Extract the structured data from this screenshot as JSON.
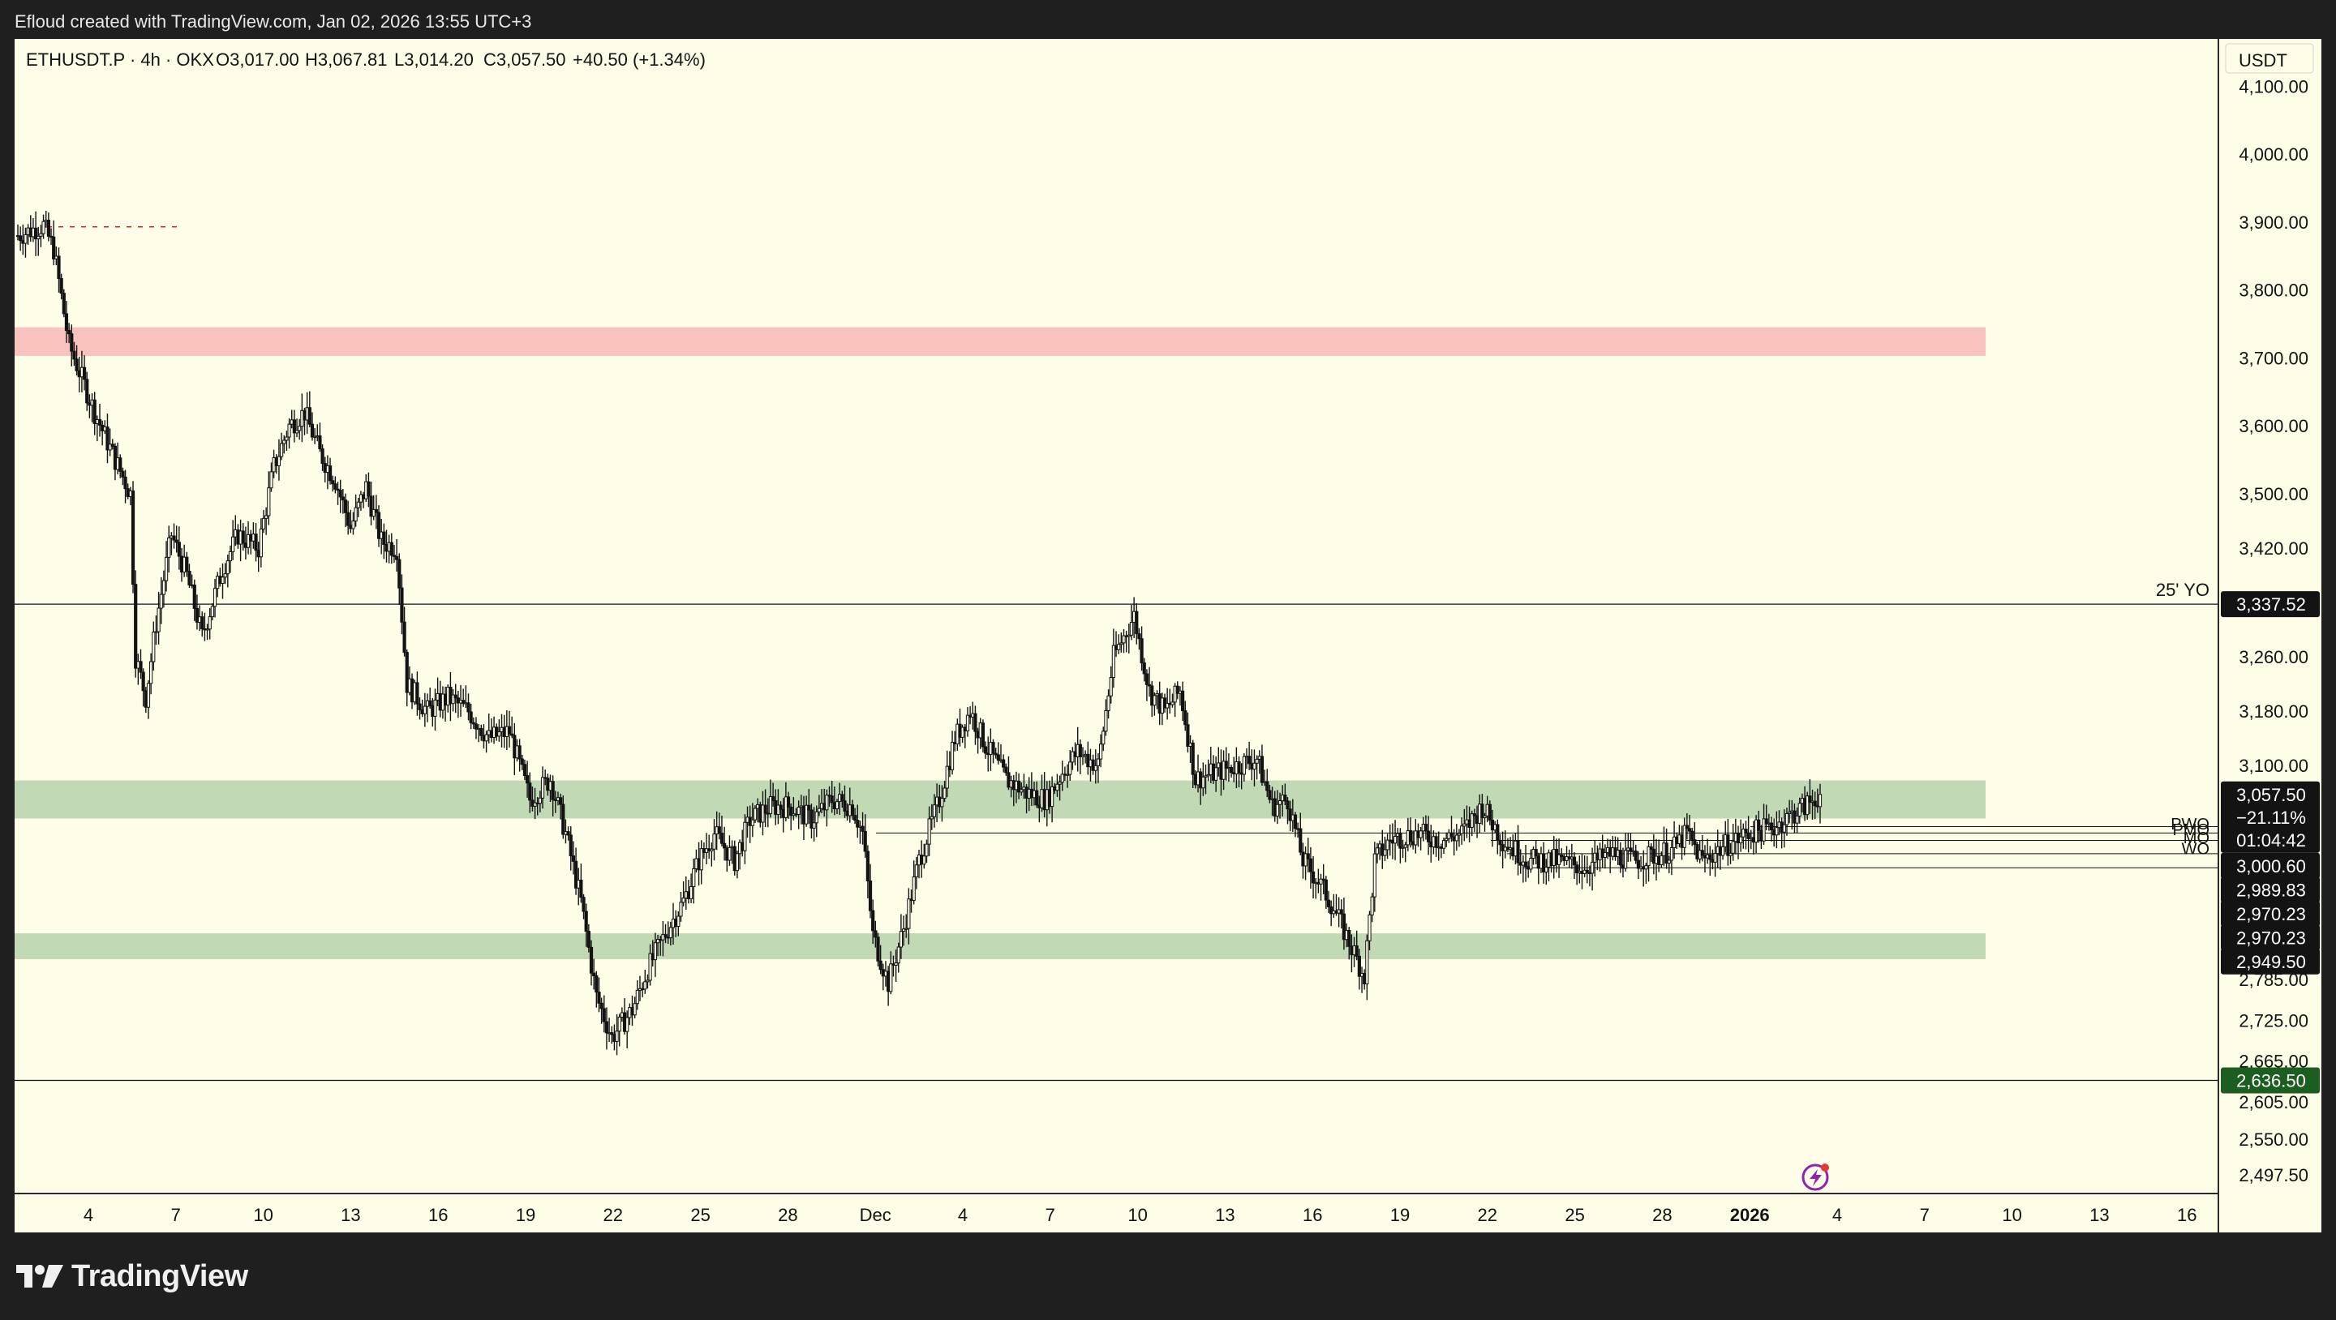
{
  "header": {
    "caption": "Efloud created with TradingView.com, Jan 02, 2026 13:55 UTC+3"
  },
  "footer": {
    "logo_text": "TradingView"
  },
  "colors": {
    "chart_bg": "#fdfde8",
    "candle": "#131313",
    "supply_zone": "#f9c3bd",
    "demand_zone": "#c2d9b6",
    "accent_green": "#1b5e20"
  },
  "icons": [
    "tradingview-logo-icon",
    "lightning-icon"
  ],
  "chart_data": {
    "type": "candlestick",
    "symbol": "ETHUSDT.P",
    "interval": "4h",
    "exchange": "OKX",
    "ohlc_text": {
      "symbol_line": "ETHUSDT.P · 4h · OKX",
      "open": "O3,017.00",
      "high": "H3,067.81",
      "low": "L3,014.20",
      "close": "C3,057.50",
      "change": "+40.50 (+1.34%)"
    },
    "currency": "USDT",
    "y_ticks": [
      "4,100.00",
      "4,000.00",
      "3,900.00",
      "3,800.00",
      "3,700.00",
      "3,600.00",
      "3,500.00",
      "3,420.00",
      "3,260.00",
      "3,180.00",
      "3,100.00",
      "2,785.00",
      "2,725.00",
      "2,665.00",
      "2,605.00",
      "2,550.00",
      "2,497.50"
    ],
    "x_ticks": [
      "4",
      "7",
      "10",
      "13",
      "16",
      "19",
      "22",
      "25",
      "28",
      "Dec",
      "4",
      "7",
      "10",
      "13",
      "16",
      "19",
      "22",
      "25",
      "28",
      "2026",
      "4",
      "7",
      "10",
      "13",
      "16"
    ],
    "levels": [
      {
        "label": "25' YO",
        "value": 3337.52,
        "badge": "3,337.52"
      },
      {
        "label": "",
        "value": 2636.5,
        "badge": "2,636.50"
      }
    ],
    "side_labels": [
      "PWO",
      "PMO",
      "MO",
      "WO"
    ],
    "price_badges": [
      {
        "value": 3057.5,
        "lines": [
          "3,057.50",
          "−21.11%",
          "01:04:42"
        ]
      },
      {
        "value": 3000.6,
        "lines": [
          "3,000.60"
        ]
      },
      {
        "value": 2989.83,
        "lines": [
          "2,989.83"
        ]
      },
      {
        "value": 2970.23,
        "lines": [
          "2,970.23"
        ]
      },
      {
        "value": 2970.23,
        "lines": [
          "2,970.23"
        ]
      },
      {
        "value": 2949.5,
        "lines": [
          "2,949.50"
        ]
      }
    ],
    "zones": [
      {
        "type": "supply",
        "from": 3703,
        "to": 3745
      },
      {
        "type": "demand",
        "from": 3022,
        "to": 3078
      },
      {
        "type": "demand",
        "from": 2815,
        "to": 2853
      }
    ],
    "path": [
      [
        0,
        3880
      ],
      [
        10,
        3895
      ],
      [
        14,
        3860
      ],
      [
        20,
        3720
      ],
      [
        30,
        3620
      ],
      [
        38,
        3550
      ],
      [
        44,
        3500
      ],
      [
        46,
        3260
      ],
      [
        50,
        3200
      ],
      [
        54,
        3310
      ],
      [
        60,
        3440
      ],
      [
        66,
        3380
      ],
      [
        72,
        3290
      ],
      [
        80,
        3390
      ],
      [
        86,
        3440
      ],
      [
        94,
        3420
      ],
      [
        100,
        3540
      ],
      [
        106,
        3600
      ],
      [
        112,
        3620
      ],
      [
        118,
        3560
      ],
      [
        124,
        3520
      ],
      [
        130,
        3450
      ],
      [
        136,
        3510
      ],
      [
        142,
        3430
      ],
      [
        148,
        3420
      ],
      [
        152,
        3220
      ],
      [
        160,
        3180
      ],
      [
        168,
        3200
      ],
      [
        176,
        3180
      ],
      [
        184,
        3140
      ],
      [
        192,
        3150
      ],
      [
        200,
        3050
      ],
      [
        208,
        3080
      ],
      [
        214,
        3000
      ],
      [
        220,
        2900
      ],
      [
        226,
        2760
      ],
      [
        232,
        2700
      ],
      [
        240,
        2740
      ],
      [
        246,
        2800
      ],
      [
        254,
        2860
      ],
      [
        260,
        2900
      ],
      [
        266,
        2960
      ],
      [
        272,
        3000
      ],
      [
        280,
        2960
      ],
      [
        286,
        3020
      ],
      [
        294,
        3040
      ],
      [
        302,
        3040
      ],
      [
        310,
        3020
      ],
      [
        318,
        3050
      ],
      [
        326,
        3040
      ],
      [
        330,
        3000
      ],
      [
        334,
        2850
      ],
      [
        340,
        2780
      ],
      [
        346,
        2860
      ],
      [
        352,
        2960
      ],
      [
        360,
        3050
      ],
      [
        366,
        3140
      ],
      [
        372,
        3180
      ],
      [
        378,
        3130
      ],
      [
        386,
        3080
      ],
      [
        394,
        3060
      ],
      [
        402,
        3050
      ],
      [
        408,
        3090
      ],
      [
        414,
        3120
      ],
      [
        422,
        3100
      ],
      [
        428,
        3260
      ],
      [
        432,
        3290
      ],
      [
        436,
        3320
      ],
      [
        442,
        3210
      ],
      [
        448,
        3180
      ],
      [
        454,
        3210
      ],
      [
        460,
        3080
      ],
      [
        468,
        3090
      ],
      [
        476,
        3100
      ],
      [
        484,
        3110
      ],
      [
        490,
        3040
      ],
      [
        496,
        3050
      ],
      [
        502,
        2960
      ],
      [
        508,
        2930
      ],
      [
        514,
        2890
      ],
      [
        520,
        2840
      ],
      [
        526,
        2790
      ],
      [
        530,
        2960
      ],
      [
        536,
        2990
      ],
      [
        546,
        3000
      ],
      [
        556,
        2990
      ],
      [
        564,
        3000
      ],
      [
        572,
        3040
      ],
      [
        580,
        2990
      ],
      [
        590,
        2960
      ],
      [
        600,
        2960
      ],
      [
        612,
        2950
      ],
      [
        622,
        2970
      ],
      [
        632,
        2960
      ],
      [
        646,
        2975
      ],
      [
        652,
        3000
      ],
      [
        658,
        2960
      ],
      [
        666,
        2980
      ],
      [
        676,
        3000
      ],
      [
        686,
        3010
      ],
      [
        698,
        3040
      ],
      [
        704,
        3057.5
      ]
    ],
    "ylim": [
      2470,
      4160
    ],
    "legend": "none",
    "grid": false
  }
}
